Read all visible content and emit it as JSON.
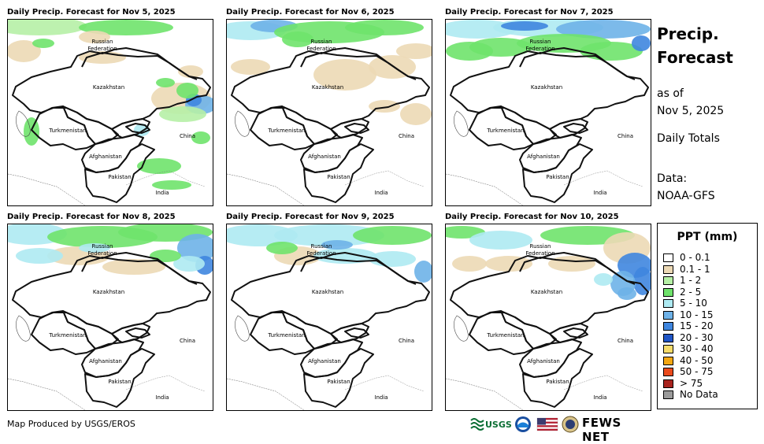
{
  "panels": [
    {
      "title": "Daily Precip. Forecast for Nov 5, 2025",
      "variant": 0
    },
    {
      "title": "Daily Precip. Forecast for Nov 6, 2025",
      "variant": 1
    },
    {
      "title": "Daily Precip. Forecast for Nov 7, 2025",
      "variant": 2
    },
    {
      "title": "Daily Precip. Forecast for Nov 8, 2025",
      "variant": 3
    },
    {
      "title": "Daily Precip. Forecast for Nov 9, 2025",
      "variant": 4
    },
    {
      "title": "Daily Precip. Forecast for Nov 10, 2025",
      "variant": 5
    }
  ],
  "map_labels": {
    "russia_line1": "Russian",
    "russia_line2": "Federation",
    "kazakhstan": "Kazakhstan",
    "turkmenistan": "Turkmenistan",
    "afghanistan": "Afghanistan",
    "pakistan": "Pakistan",
    "china": "China",
    "india": "India"
  },
  "side": {
    "title_line1": "Precip.",
    "title_line2": "Forecast",
    "as_of": "as of",
    "date": "Nov 5, 2025",
    "totals": "Daily Totals",
    "data_label": "Data:",
    "data_source": "NOAA-GFS"
  },
  "legend": {
    "title": "PPT (mm)",
    "items": [
      {
        "label": "0 - 0.1",
        "color": "#ffffff"
      },
      {
        "label": "0.1 - 1",
        "color": "#ecd9b5"
      },
      {
        "label": "1 - 2",
        "color": "#b6f0a6"
      },
      {
        "label": "2 - 5",
        "color": "#6fe36b"
      },
      {
        "label": "5 - 10",
        "color": "#aeeaf2"
      },
      {
        "label": "10 - 15",
        "color": "#6eb2e8"
      },
      {
        "label": "15 - 20",
        "color": "#3f86df"
      },
      {
        "label": "20 - 30",
        "color": "#1f55c6"
      },
      {
        "label": "30 - 40",
        "color": "#f7dc6a"
      },
      {
        "label": "40 - 50",
        "color": "#f3a712"
      },
      {
        "label": "50 - 75",
        "color": "#ea4a1c"
      },
      {
        "label": "> 75",
        "color": "#a8231e"
      },
      {
        "label": "No Data",
        "color": "#9b9b9b"
      }
    ]
  },
  "footer": {
    "credit": "Map Produced by USGS/EROS",
    "usgs_logo": "USGS",
    "agency_logo": "FEWS NET"
  }
}
